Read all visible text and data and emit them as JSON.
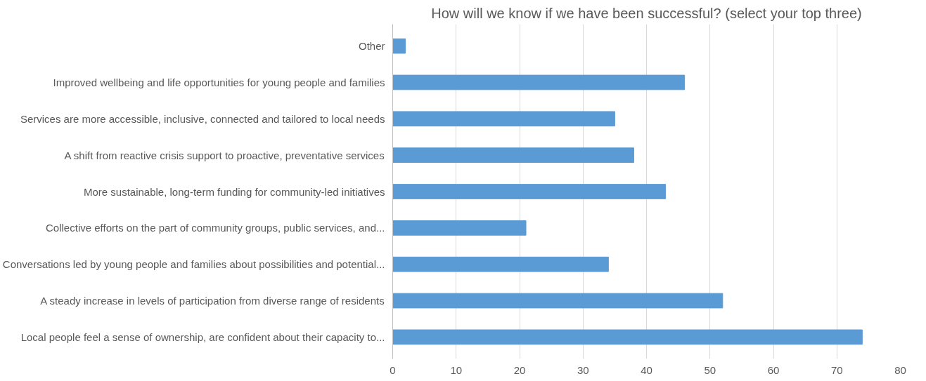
{
  "chart_data": {
    "type": "bar",
    "orientation": "horizontal",
    "title": "How will we know if we have been successful? (select your top three)",
    "categories": [
      "Other",
      "Improved wellbeing and life opportunities for young people and families",
      "Services are more accessible, inclusive, connected and tailored to local needs",
      "A shift from reactive crisis support to proactive, preventative services",
      "More sustainable, long-term funding for community-led initiatives",
      "Collective efforts on the part of community groups, public services, and...",
      "Conversations led by young people and families about possibilities and potential...",
      "A steady increase in levels of participation from diverse range of residents",
      "Local people feel a sense of ownership, are confident about their capacity to..."
    ],
    "values": [
      2,
      46,
      35,
      38,
      43,
      21,
      34,
      52,
      74
    ],
    "color": "#5b9bd5",
    "xlim": [
      0,
      80
    ],
    "xticks": [
      0,
      10,
      20,
      30,
      40,
      50,
      60,
      70,
      80
    ],
    "grid": "x"
  }
}
